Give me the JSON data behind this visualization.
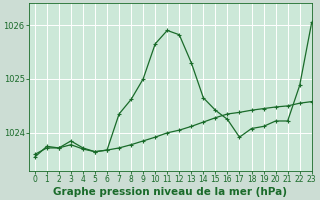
{
  "title": "Graphe pression niveau de la mer (hPa)",
  "background_color": "#ccddd4",
  "plot_bg_color": "#cce8d8",
  "line_color": "#1a6b2a",
  "grid_color": "#ffffff",
  "xlim": [
    -0.5,
    23
  ],
  "ylim": [
    1023.3,
    1026.4
  ],
  "yticks": [
    1024,
    1025,
    1026
  ],
  "ytick_labels": [
    "1024",
    "1025",
    "1026"
  ],
  "xticks": [
    0,
    1,
    2,
    3,
    4,
    5,
    6,
    7,
    8,
    9,
    10,
    11,
    12,
    13,
    14,
    15,
    16,
    17,
    18,
    19,
    20,
    21,
    22,
    23
  ],
  "series1_x": [
    0,
    1,
    2,
    3,
    4,
    5,
    6,
    7,
    8,
    9,
    10,
    11,
    12,
    13,
    14,
    15,
    16,
    17,
    18,
    19,
    20,
    21,
    22,
    23
  ],
  "series1_y": [
    1023.55,
    1023.75,
    1023.72,
    1023.85,
    1023.72,
    1023.65,
    1023.68,
    1024.35,
    1024.62,
    1025.0,
    1025.65,
    1025.9,
    1025.82,
    1025.3,
    1024.65,
    1024.42,
    1024.25,
    1023.92,
    1024.08,
    1024.12,
    1024.22,
    1024.22,
    1024.88,
    1026.05
  ],
  "series2_x": [
    0,
    1,
    2,
    3,
    4,
    5,
    6,
    7,
    8,
    9,
    10,
    11,
    12,
    13,
    14,
    15,
    16,
    17,
    18,
    19,
    20,
    21,
    22,
    23
  ],
  "series2_y": [
    1023.6,
    1023.72,
    1023.72,
    1023.78,
    1023.7,
    1023.65,
    1023.68,
    1023.72,
    1023.78,
    1023.85,
    1023.92,
    1024.0,
    1024.05,
    1024.12,
    1024.2,
    1024.28,
    1024.35,
    1024.38,
    1024.42,
    1024.45,
    1024.48,
    1024.5,
    1024.55,
    1024.58
  ],
  "title_fontsize": 7.5,
  "tick_fontsize": 6.0
}
